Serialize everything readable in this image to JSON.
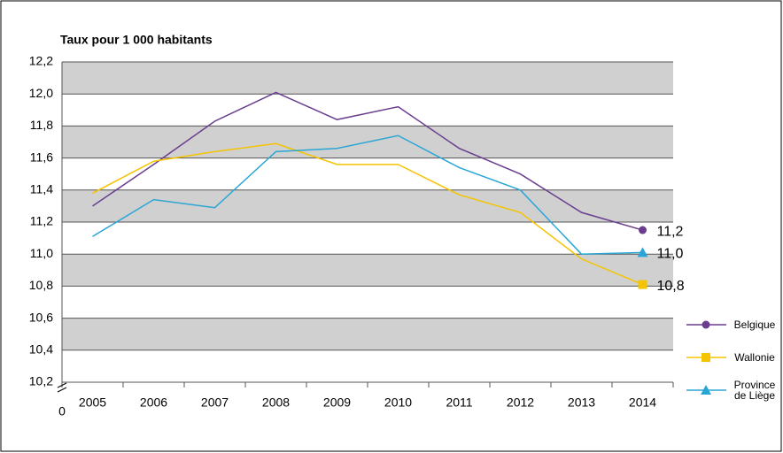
{
  "chart_data": {
    "type": "line",
    "title": "Taux pour 1 000 habitants",
    "categories": [
      "2005",
      "2006",
      "2007",
      "2008",
      "2009",
      "2010",
      "2011",
      "2012",
      "2013",
      "2014"
    ],
    "series": [
      {
        "name": "Belgique",
        "color": "#6a3d8f",
        "marker": "circle",
        "end_label": "11,2",
        "values": [
          11.3,
          11.56,
          11.83,
          12.01,
          11.84,
          11.92,
          11.66,
          11.5,
          11.26,
          11.15
        ]
      },
      {
        "name": "Wallonie",
        "color": "#f5c400",
        "marker": "square",
        "end_label": "10,8",
        "values": [
          11.38,
          11.58,
          11.64,
          11.69,
          11.56,
          11.56,
          11.37,
          11.26,
          10.97,
          10.81
        ]
      },
      {
        "name": "Province de Liège",
        "color": "#2aa6d6",
        "marker": "triangle",
        "end_label": "11,0",
        "values": [
          11.11,
          11.34,
          11.29,
          11.64,
          11.66,
          11.74,
          11.54,
          11.4,
          11.0,
          11.01
        ]
      }
    ],
    "ylim": [
      10.2,
      12.2
    ],
    "yticks": [
      {
        "value": 10.2,
        "label": "10,2"
      },
      {
        "value": 10.4,
        "label": "10,4"
      },
      {
        "value": 10.6,
        "label": "10,6"
      },
      {
        "value": 10.8,
        "label": "10,8"
      },
      {
        "value": 11.0,
        "label": "11,0"
      },
      {
        "value": 11.2,
        "label": "11,2"
      },
      {
        "value": 11.4,
        "label": "11,4"
      },
      {
        "value": 11.6,
        "label": "11,6"
      },
      {
        "value": 11.8,
        "label": "11,8"
      },
      {
        "value": 12.0,
        "label": "12,0"
      },
      {
        "value": 12.2,
        "label": "12,2"
      }
    ],
    "axis_break_label": "0",
    "grid_bands": true,
    "legend": "right"
  }
}
